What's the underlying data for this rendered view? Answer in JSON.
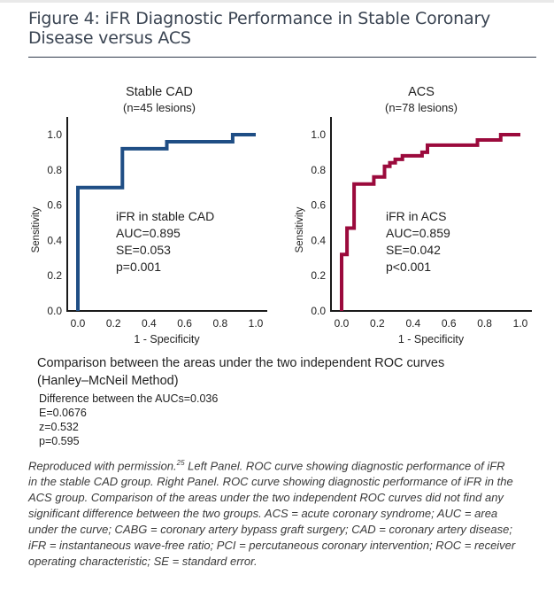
{
  "figure": {
    "title_line1": "Figure 4: iFR Diagnostic Performance in Stable Coronary",
    "title_line2": "Disease versus ACS"
  },
  "chart_data": [
    {
      "type": "line",
      "subtype": "step",
      "title": "Stable CAD",
      "subtitle": "(n=45 lesions)",
      "xlabel": "1 - Specificity",
      "ylabel": "Sensitivity",
      "xlim": [
        0,
        1
      ],
      "ylim": [
        0,
        1
      ],
      "xticks": [
        "0.0",
        "0.2",
        "0.4",
        "0.6",
        "0.8",
        "1.0"
      ],
      "yticks": [
        "0.0",
        "0.2",
        "0.4",
        "0.6",
        "0.8",
        "1.0"
      ],
      "grid": false,
      "color": "#1f4e85",
      "series": [
        {
          "name": "iFR in stable CAD",
          "points": [
            [
              0.0,
              0.0
            ],
            [
              0.0,
              0.7
            ],
            [
              0.25,
              0.7
            ],
            [
              0.25,
              0.92
            ],
            [
              0.5,
              0.92
            ],
            [
              0.5,
              0.96
            ],
            [
              0.87,
              0.96
            ],
            [
              0.87,
              1.0
            ],
            [
              1.0,
              1.0
            ]
          ]
        }
      ],
      "annotation": [
        "iFR in stable CAD",
        "AUC=0.895",
        "SE=0.053",
        "p=0.001"
      ]
    },
    {
      "type": "line",
      "subtype": "step",
      "title": "ACS",
      "subtitle": "(n=78 lesions)",
      "xlabel": "1 - Specificity",
      "ylabel": "Sensitivity",
      "xlim": [
        0,
        1
      ],
      "ylim": [
        0,
        1
      ],
      "xticks": [
        "0.0",
        "0.2",
        "0.4",
        "0.6",
        "0.8",
        "1.0"
      ],
      "yticks": [
        "0.0",
        "0.2",
        "0.4",
        "0.6",
        "0.8",
        "1.0"
      ],
      "grid": false,
      "color": "#9b0a3c",
      "series": [
        {
          "name": "iFR in ACS",
          "points": [
            [
              0.0,
              0.0
            ],
            [
              0.0,
              0.32
            ],
            [
              0.03,
              0.32
            ],
            [
              0.03,
              0.47
            ],
            [
              0.07,
              0.47
            ],
            [
              0.07,
              0.72
            ],
            [
              0.18,
              0.72
            ],
            [
              0.18,
              0.76
            ],
            [
              0.24,
              0.76
            ],
            [
              0.24,
              0.82
            ],
            [
              0.27,
              0.82
            ],
            [
              0.27,
              0.84
            ],
            [
              0.3,
              0.84
            ],
            [
              0.3,
              0.86
            ],
            [
              0.34,
              0.86
            ],
            [
              0.34,
              0.88
            ],
            [
              0.45,
              0.88
            ],
            [
              0.45,
              0.9
            ],
            [
              0.48,
              0.9
            ],
            [
              0.48,
              0.94
            ],
            [
              0.76,
              0.94
            ],
            [
              0.76,
              0.97
            ],
            [
              0.89,
              0.97
            ],
            [
              0.89,
              1.0
            ],
            [
              1.0,
              1.0
            ]
          ]
        }
      ],
      "annotation": [
        "iFR in ACS",
        "AUC=0.859",
        "SE=0.042",
        "p<0.001"
      ]
    }
  ],
  "comparison": {
    "heading_line1": "Comparison between the areas under the two independent ROC curves",
    "heading_line2": "(Hanley–McNeil Method)",
    "stats": [
      "Difference between the AUCs=0.036",
      "E=0.0676",
      "z=0.532",
      "p=0.595"
    ]
  },
  "caption": {
    "line1_pre": "Reproduced with permission.",
    "ref": "25",
    "line1_post": " Left Panel. ROC curve showing diagnostic performance of iFR",
    "lines": [
      "in the stable CAD group. Right Panel. ROC curve showing diagnostic performance of iFR in the",
      "ACS group. Comparison of the areas under the two independent ROC curves did not find any",
      "significant difference between the two groups. ACS = acute coronary syndrome; AUC =  area",
      "under the curve; CABG = coronary artery bypass graft surgery; CAD = coronary artery disease;",
      "iFR = instantaneous wave-free ratio; PCI = percutaneous coronary intervention; ROC = receiver",
      "operating characteristic; SE = standard error."
    ]
  }
}
